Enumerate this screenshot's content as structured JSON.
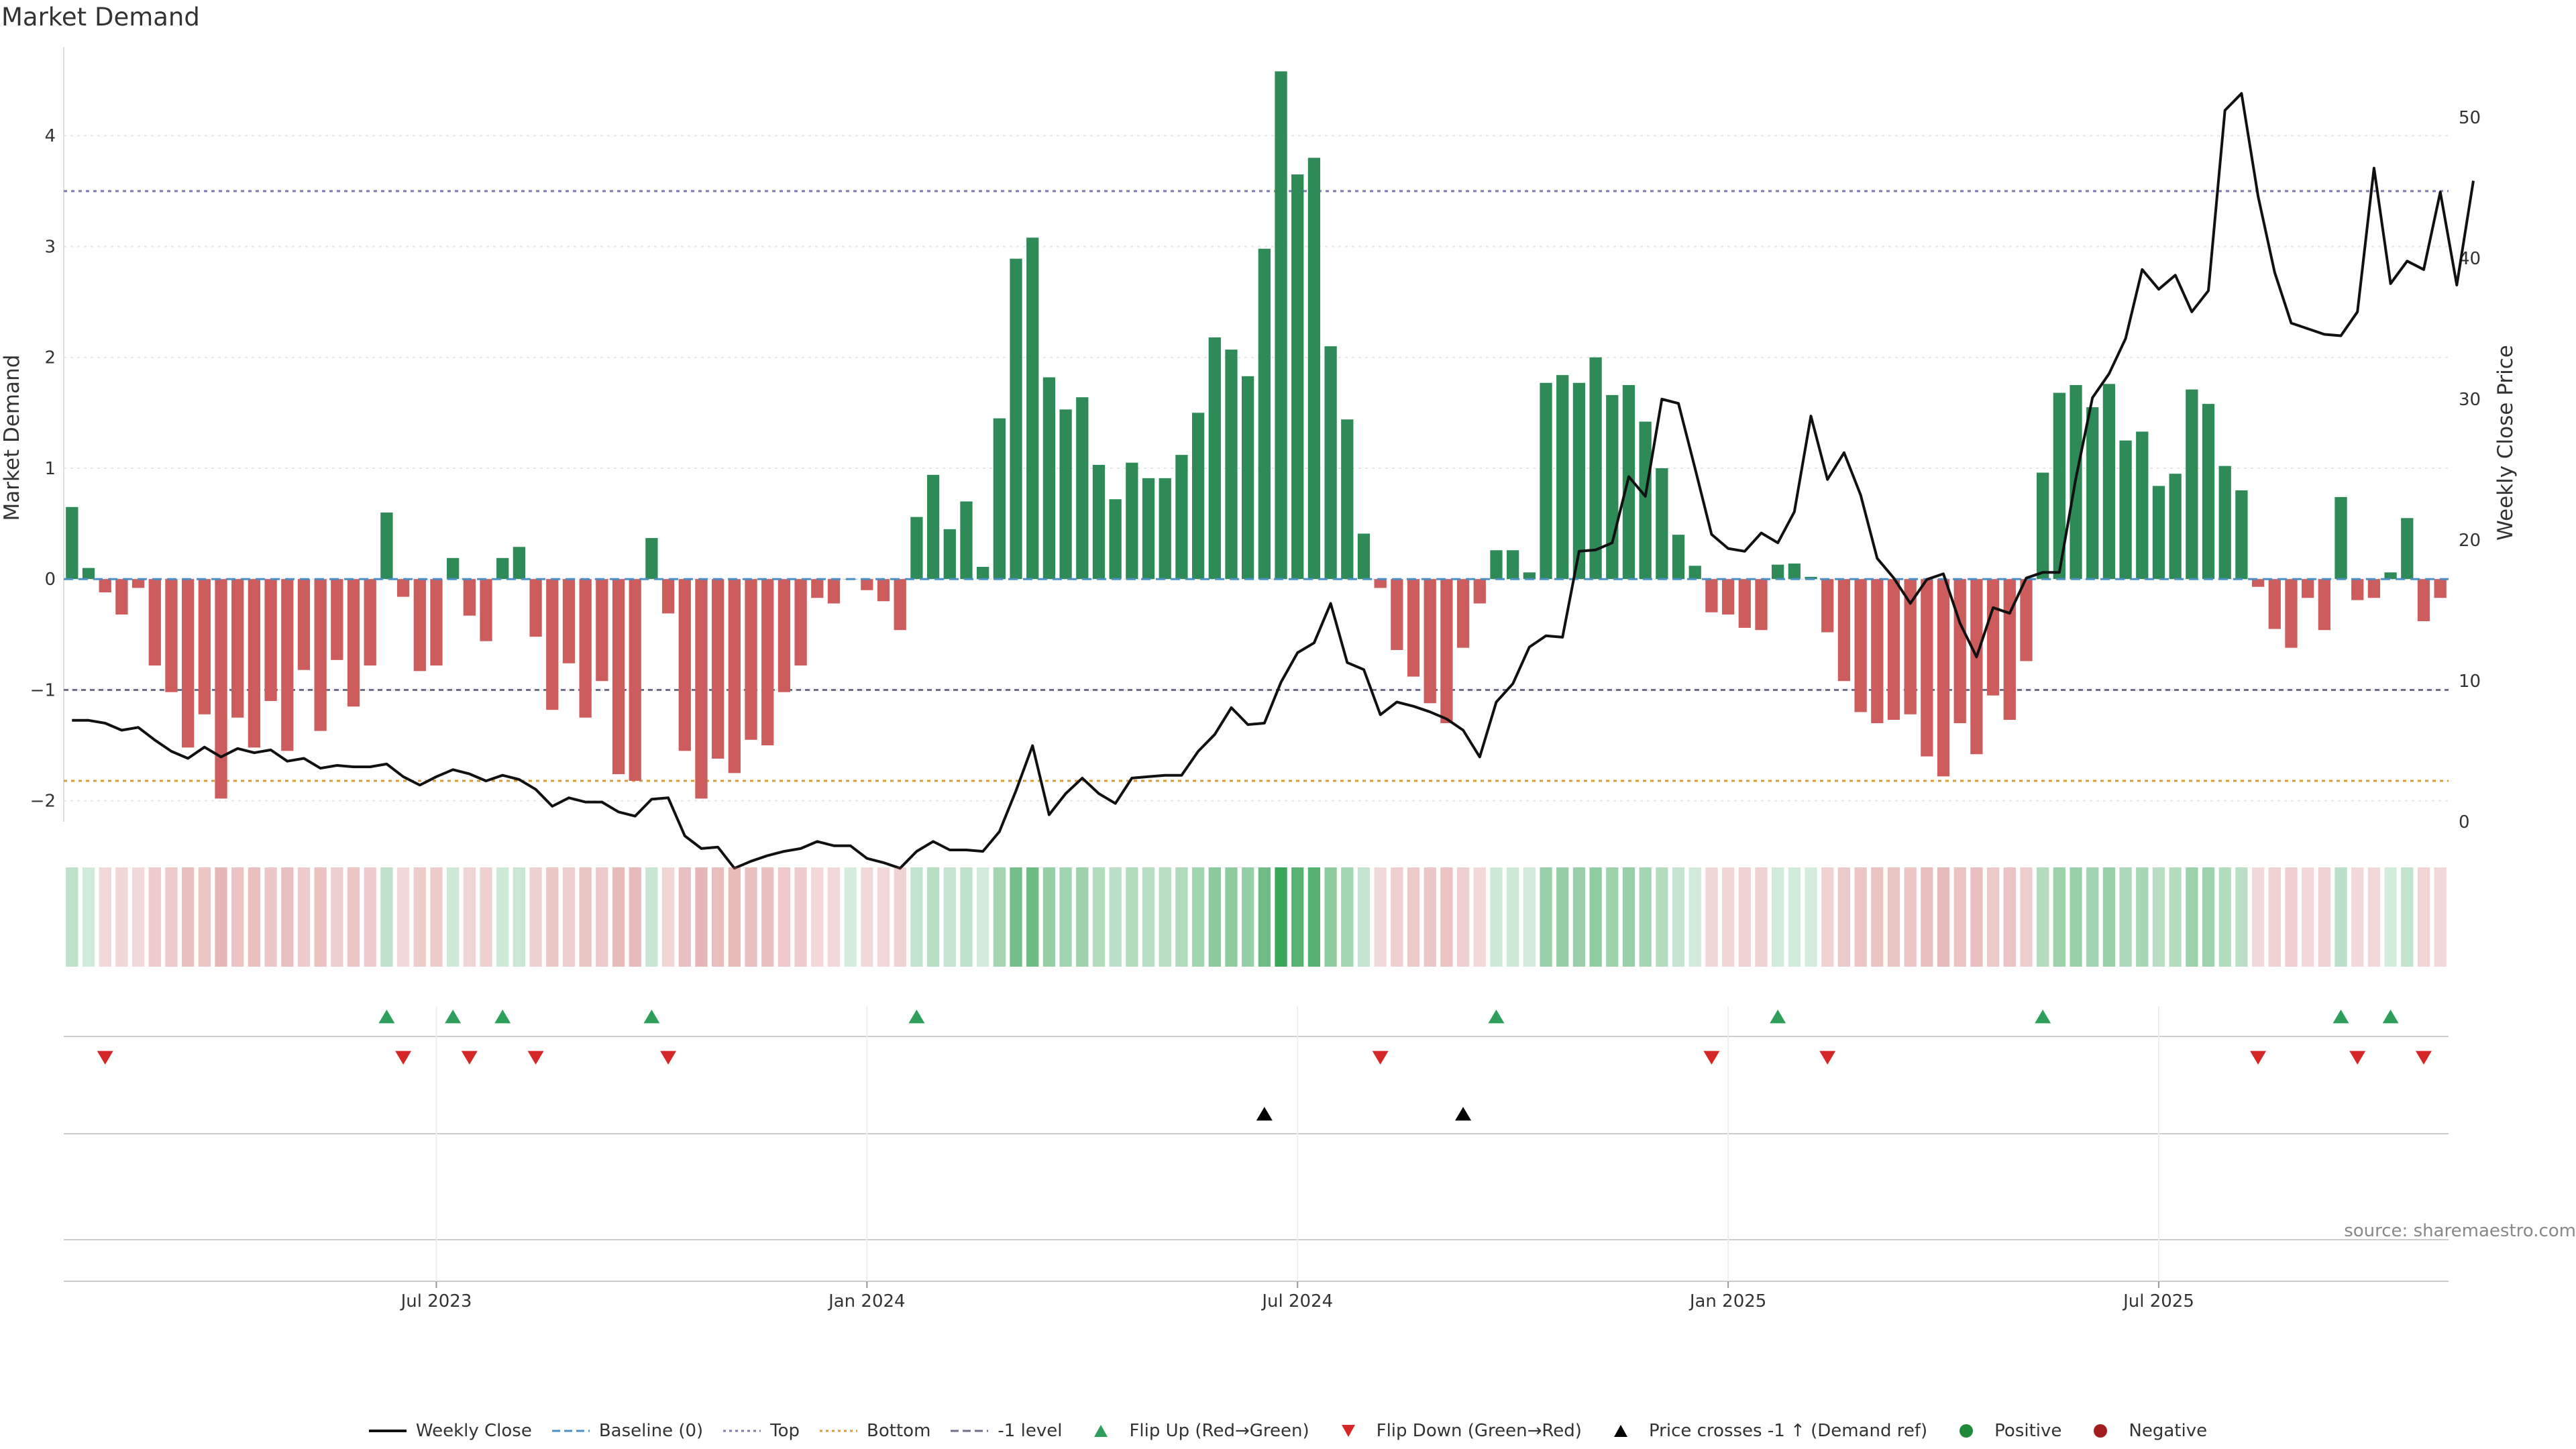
{
  "title": "Market Demand",
  "source": "source: sharemaestro.com",
  "colors": {
    "positive": "#2e8b57",
    "negative": "#cd5c5c",
    "price": "#111111",
    "baseline": "#4a90c8",
    "top": "#7b7bb0",
    "bottom": "#d99a3c",
    "minus_one": "#6f6f8c",
    "flip_up": "#2e9e5b",
    "flip_down": "#d62728",
    "cross": "#000000",
    "pos_dot": "#1f8a3a",
    "neg_dot": "#a31d1d"
  },
  "legend": [
    {
      "key": "weekly_close",
      "label": "Weekly Close",
      "kind": "line"
    },
    {
      "key": "baseline",
      "label": "Baseline (0)",
      "kind": "dash"
    },
    {
      "key": "top",
      "label": "Top",
      "kind": "dot"
    },
    {
      "key": "bottom",
      "label": "Bottom",
      "kind": "dot"
    },
    {
      "key": "minus_one",
      "label": "-1 level",
      "kind": "dash"
    },
    {
      "key": "flip_up",
      "label": "Flip Up (Red→Green)",
      "kind": "tri-up"
    },
    {
      "key": "flip_down",
      "label": "Flip Down (Green→Red)",
      "kind": "tri-down"
    },
    {
      "key": "cross",
      "label": "Price crosses -1 ↑ (Demand ref)",
      "kind": "tri-up"
    },
    {
      "key": "pos_dot",
      "label": "Positive",
      "kind": "dot-mark"
    },
    {
      "key": "neg_dot",
      "label": "Negative",
      "kind": "dot-mark"
    }
  ],
  "chart_data": {
    "type": "bar",
    "title": "Market Demand",
    "xlabel": "",
    "ylabel": "Market Demand",
    "ylabel_right": "Weekly Close Price",
    "ylim": [
      -2.25,
      4.8
    ],
    "ylim_right": [
      0,
      55
    ],
    "yticks": [
      -2,
      -1,
      0,
      1,
      2,
      3,
      4
    ],
    "yticks_right": [
      0,
      10,
      20,
      30,
      40,
      50
    ],
    "xticks": [
      {
        "label": "Jul 2023",
        "index": 22
      },
      {
        "label": "Jan 2024",
        "index": 48
      },
      {
        "label": "Jul 2024",
        "index": 74
      },
      {
        "label": "Jan 2025",
        "index": 100
      },
      {
        "label": "Jul 2025",
        "index": 126
      }
    ],
    "reference_lines": {
      "top": 3.5,
      "bottom": -1.82,
      "minus_one": -1,
      "baseline": 0
    },
    "demand": [
      0.65,
      0.1,
      -0.12,
      -0.32,
      -0.08,
      -0.78,
      -1.02,
      -1.52,
      -1.22,
      -1.98,
      -1.25,
      -1.52,
      -1.1,
      -1.55,
      -0.82,
      -1.37,
      -0.73,
      -1.15,
      -0.78,
      0.6,
      -0.16,
      -0.83,
      -0.78,
      0.19,
      -0.33,
      -0.56,
      0.19,
      0.29,
      -0.52,
      -1.18,
      -0.76,
      -1.25,
      -0.92,
      -1.76,
      -1.82,
      0.37,
      -0.31,
      -1.55,
      -1.98,
      -1.62,
      -1.75,
      -1.45,
      -1.5,
      -1.02,
      -0.78,
      -0.17,
      -0.22,
      0,
      -0.1,
      -0.2,
      -0.46,
      0.56,
      0.94,
      0.45,
      0.7,
      0.11,
      1.45,
      2.89,
      3.08,
      1.82,
      1.53,
      1.64,
      1.03,
      0.72,
      1.05,
      0.91,
      0.91,
      1.12,
      1.5,
      2.18,
      2.07,
      1.83,
      2.98,
      4.58,
      3.65,
      3.8,
      2.1,
      1.44,
      0.41,
      -0.08,
      -0.64,
      -0.88,
      -1.12,
      -1.3,
      -0.62,
      -0.22,
      0.26,
      0.26,
      0.06,
      1.77,
      1.84,
      1.77,
      2.0,
      1.66,
      1.75,
      1.42,
      1.0,
      0.4,
      0.12,
      -0.3,
      -0.32,
      -0.44,
      -0.46,
      0.13,
      0.14,
      0.02,
      -0.48,
      -0.92,
      -1.2,
      -1.3,
      -1.27,
      -1.22,
      -1.6,
      -1.78,
      -1.3,
      -1.58,
      -1.05,
      -1.27,
      -0.74,
      0.96,
      1.68,
      1.75,
      1.55,
      1.76,
      1.25,
      1.33,
      0.84,
      0.95,
      1.71,
      1.58,
      1.02,
      0.8,
      -0.07,
      -0.45,
      -0.62,
      -0.17,
      -0.46,
      0.74,
      -0.19,
      -0.17,
      0.06,
      0.55,
      -0.38,
      -0.17
    ],
    "price": [
      7.2,
      7.2,
      7.0,
      6.5,
      6.7,
      5.8,
      5.0,
      4.5,
      5.3,
      4.6,
      5.2,
      4.9,
      5.1,
      4.3,
      4.5,
      3.8,
      4.0,
      3.9,
      3.9,
      4.1,
      3.2,
      2.6,
      3.2,
      3.7,
      3.4,
      2.9,
      3.3,
      3.0,
      2.3,
      1.1,
      1.7,
      1.4,
      1.4,
      0.7,
      0.4,
      1.6,
      1.7,
      -1.0,
      -1.9,
      -1.8,
      -3.3,
      -2.8,
      -2.4,
      -2.1,
      -1.9,
      -1.4,
      -1.7,
      -1.7,
      -2.6,
      -2.9,
      -3.3,
      -2.1,
      -1.4,
      -2.0,
      -2.0,
      -2.1,
      -0.7,
      2.2,
      5.4,
      0.5,
      2.0,
      3.1,
      2.0,
      1.3,
      3.1,
      3.2,
      3.3,
      3.3,
      5.0,
      6.2,
      8.1,
      6.9,
      7.0,
      9.9,
      12.0,
      12.7,
      15.5,
      11.3,
      10.8,
      7.6,
      8.5,
      8.2,
      7.8,
      7.3,
      6.5,
      4.6,
      8.5,
      9.8,
      12.4,
      13.2,
      13.1,
      19.2,
      19.3,
      19.8,
      24.5,
      23.1,
      30.0,
      29.7,
      25.1,
      20.4,
      19.4,
      19.2,
      20.5,
      19.8,
      22.0,
      28.8,
      24.3,
      26.2,
      23.2,
      18.7,
      17.3,
      15.5,
      17.2,
      17.6,
      14.1,
      11.7,
      15.2,
      14.8,
      17.3,
      17.7,
      17.7,
      24.4,
      30.1,
      31.8,
      34.3,
      39.2,
      37.8,
      38.8,
      36.2,
      37.7,
      50.5,
      51.7,
      44.4,
      39.0,
      35.4,
      35.0,
      34.6,
      34.5,
      36.2,
      46.4,
      38.2,
      39.8,
      39.2,
      44.7,
      38.1,
      45.5
    ],
    "heat_strip": "color-intensity per week proportional to demand (green positive, red negative)",
    "flip_up_index": [
      19,
      23,
      26,
      35,
      51,
      86,
      103,
      119,
      137,
      140
    ],
    "flip_down_index": [
      2,
      20,
      24,
      28,
      36,
      79,
      99,
      106,
      132,
      138,
      142
    ],
    "price_cross_index": [
      72,
      84
    ]
  }
}
